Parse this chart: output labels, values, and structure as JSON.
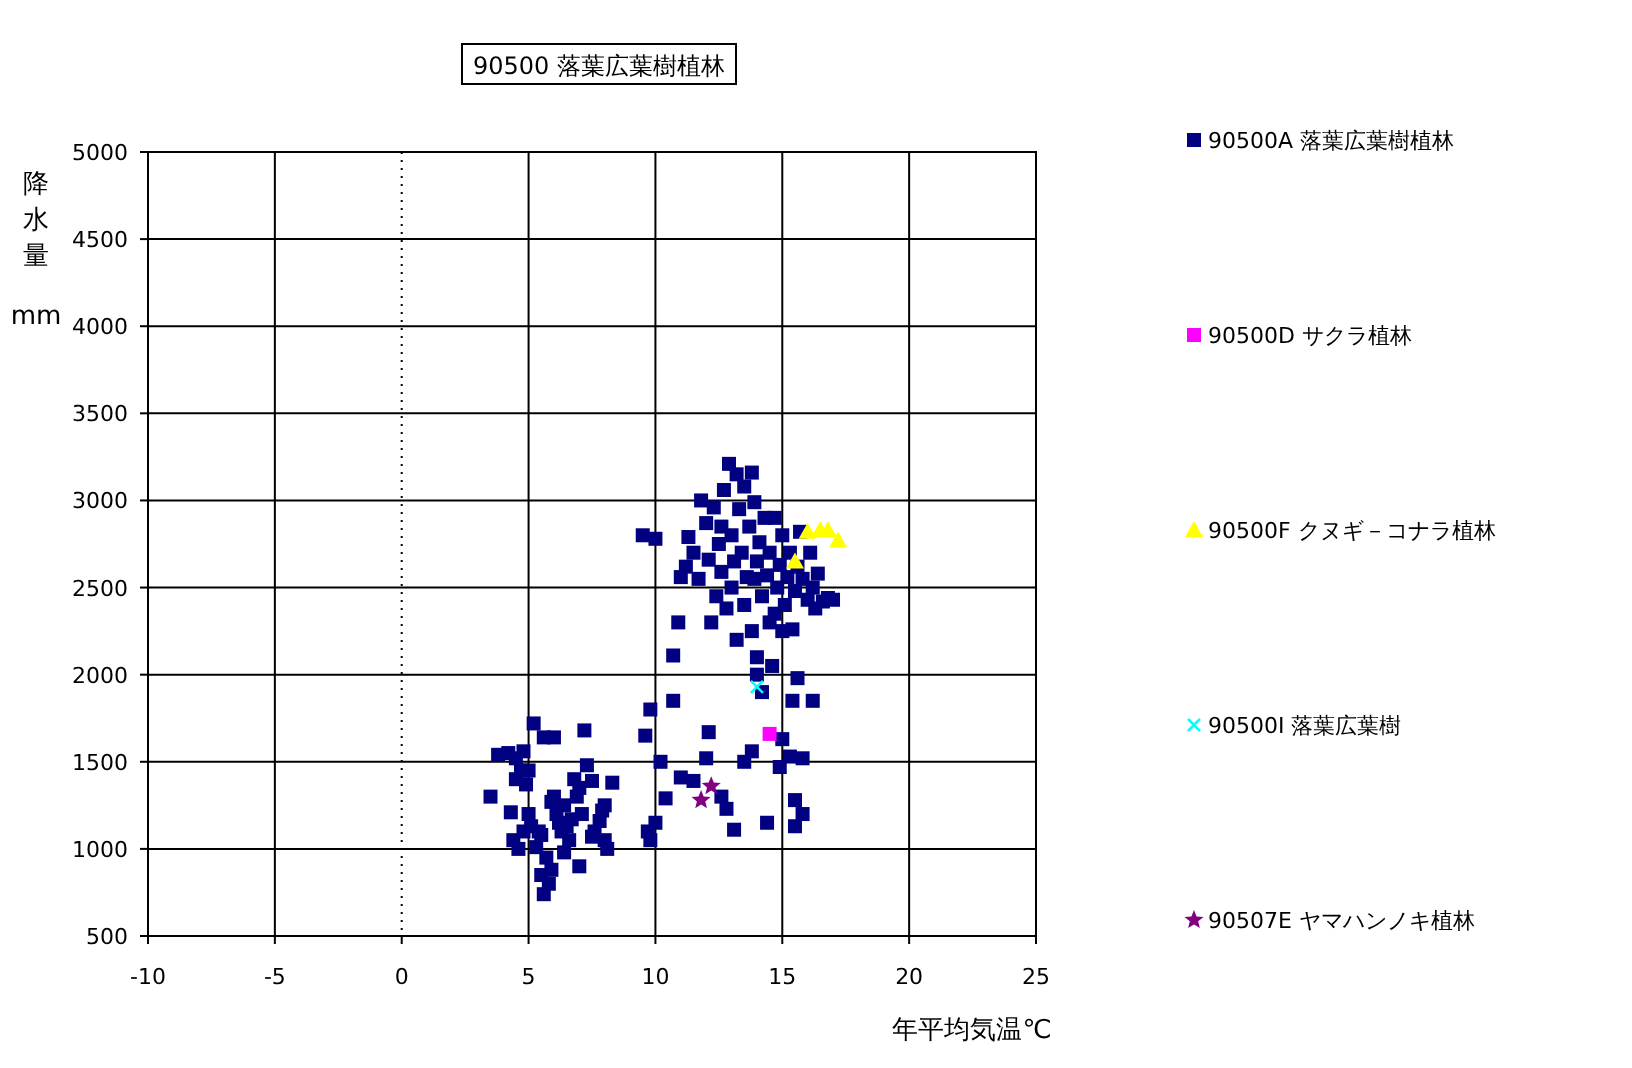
{
  "chart_data": {
    "type": "scatter",
    "title": "90500 落葉広葉樹植林",
    "xlabel": "年平均気温℃",
    "ylabel": "降水量 mm",
    "xlim": [
      -10,
      25
    ],
    "xticks": [
      -10,
      -5,
      0,
      5,
      10,
      15,
      20,
      25
    ],
    "ylim": [
      500,
      5000
    ],
    "yticks": [
      500,
      1000,
      1500,
      2000,
      2500,
      3000,
      3500,
      4000,
      4500,
      5000
    ],
    "grid": true,
    "legend": "right",
    "ref_lines": [
      {
        "axis": "x",
        "value": 0,
        "line_style": "dotted"
      }
    ],
    "series": [
      {
        "name": "90500A 落葉広葉樹植林",
        "color": "#000080",
        "marker": "square",
        "x": [
          3.5,
          3.8,
          4.2,
          4.5,
          4.5,
          4.7,
          4.8,
          4.9,
          5.0,
          4.6,
          4.8,
          5.0,
          5.1,
          5.2,
          5.3,
          5.5,
          5.5,
          5.6,
          5.8,
          5.9,
          5.7,
          5.6,
          6.0,
          6.0,
          6.1,
          6.2,
          6.3,
          6.4,
          6.5,
          6.6,
          6.8,
          6.9,
          7.0,
          7.1,
          7.2,
          7.3,
          7.5,
          7.5,
          7.6,
          7.8,
          8.0,
          8.0,
          8.1,
          8.3,
          6.7,
          5.9,
          5.4,
          4.3,
          4.4,
          7.0,
          6.4,
          7.9,
          9.6,
          9.8,
          9.7,
          9.8,
          10.0,
          10.2,
          10.4,
          10.7,
          11.0,
          11.5,
          12.0,
          12.1,
          12.6,
          12.8,
          13.1,
          13.5,
          13.8,
          14.4,
          14.9,
          15.0,
          15.3,
          15.4,
          15.6,
          15.8,
          16.2,
          15.5,
          15.8,
          15.5,
          10.0,
          9.5,
          10.7,
          10.9,
          11.0,
          11.2,
          11.3,
          11.5,
          11.7,
          11.8,
          12.0,
          12.1,
          12.3,
          12.4,
          12.5,
          12.6,
          12.7,
          12.8,
          12.9,
          13.0,
          13.0,
          13.1,
          13.2,
          13.3,
          13.4,
          13.5,
          13.5,
          13.6,
          13.7,
          13.8,
          13.8,
          13.9,
          14.0,
          14.0,
          14.1,
          14.2,
          14.3,
          14.4,
          14.5,
          14.5,
          14.6,
          14.7,
          14.8,
          14.9,
          15.0,
          15.0,
          15.1,
          15.2,
          15.3,
          15.4,
          15.5,
          15.6,
          15.7,
          15.8,
          16.0,
          16.1,
          16.2,
          16.4,
          16.6,
          16.8,
          17.0,
          12.2,
          13.2,
          14.0,
          14.2,
          16.3,
          12.6,
          13.9,
          14.7
        ],
        "values": [
          1300,
          1540,
          1550,
          1520,
          1400,
          1450,
          1560,
          1370,
          1450,
          1000,
          1100,
          1200,
          1130,
          1720,
          1010,
          1080,
          850,
          740,
          800,
          880,
          950,
          1640,
          1640,
          1300,
          1200,
          1150,
          1100,
          1250,
          1130,
          1050,
          1400,
          1300,
          1350,
          1200,
          1680,
          1480,
          1390,
          1070,
          1100,
          1160,
          1250,
          1050,
          1000,
          1380,
          1170,
          1270,
          1100,
          1210,
          1050,
          900,
          980,
          1220,
          1650,
          1800,
          1100,
          1050,
          1150,
          1500,
          1290,
          1850,
          1410,
          1390,
          1520,
          1670,
          1300,
          1230,
          1110,
          1500,
          1560,
          1150,
          1470,
          1630,
          1530,
          1850,
          1980,
          1520,
          1850,
          1280,
          1200,
          1130,
          2780,
          2800,
          2110,
          2300,
          2560,
          2620,
          2790,
          2700,
          2550,
          3000,
          2870,
          2660,
          2960,
          2450,
          2750,
          2590,
          3060,
          2380,
          3210,
          2500,
          2800,
          2650,
          3150,
          2950,
          2700,
          2400,
          3080,
          2560,
          2850,
          2250,
          3160,
          2990,
          2650,
          2100,
          2760,
          2450,
          2900,
          2570,
          2300,
          2700,
          2050,
          2900,
          2500,
          2630,
          2250,
          2800,
          2400,
          2560,
          2700,
          2260,
          2480,
          2620,
          2820,
          2550,
          2430,
          2700,
          2500,
          2580,
          2420,
          2440,
          2430,
          2300,
          2200,
          2000,
          1900,
          2380,
          2850,
          2550,
          2350
        ]
      },
      {
        "name": "90500D サクラ植林",
        "color": "#ff00ff",
        "marker": "square",
        "x": [
          14.5
        ],
        "values": [
          1660
        ]
      },
      {
        "name": "90500F クヌギ－コナラ植林",
        "color": "#ffff00",
        "marker": "triangle",
        "x": [
          15.5,
          16.0,
          16.5,
          16.8,
          17.2
        ],
        "values": [
          2650,
          2820,
          2830,
          2830,
          2770
        ]
      },
      {
        "name": "90500I 落葉広葉樹",
        "color": "#00ffff",
        "marker": "cross",
        "x": [
          14.0
        ],
        "values": [
          1930
        ]
      },
      {
        "name": "90507E ヤマハンノキ植林",
        "color": "#800080",
        "marker": "star",
        "x": [
          12.2,
          11.8
        ],
        "values": [
          1360,
          1280
        ]
      }
    ]
  }
}
